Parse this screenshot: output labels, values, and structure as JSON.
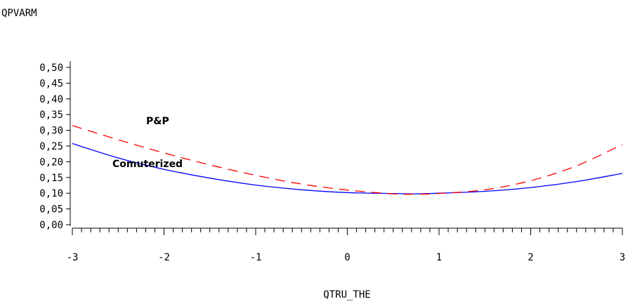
{
  "chart_data": {
    "type": "line",
    "title": "",
    "xlabel": "QTRU_THE",
    "ylabel": "QPVARM",
    "xlim": [
      -3,
      3
    ],
    "ylim": [
      0,
      0.52
    ],
    "x_ticks": [
      "-3",
      "-2",
      "-1",
      "0",
      "1",
      "2",
      "3"
    ],
    "y_ticks": [
      "0.00",
      "0.05",
      "0.10",
      "0.15",
      "0.20",
      "0.25",
      "0.30",
      "0.35",
      "0.40",
      "0.45",
      "0.50"
    ],
    "grid": false,
    "legend": "none",
    "x": [
      -3,
      -2.5,
      -2,
      -1.5,
      -1,
      -0.5,
      0,
      0.5,
      0.75,
      1,
      1.5,
      2,
      2.5,
      3
    ],
    "series": [
      {
        "name": "P&P",
        "color": "#ff0000",
        "style": "dashed",
        "values": [
          0.315,
          0.27,
          0.228,
          0.19,
          0.157,
          0.129,
          0.11,
          0.098,
          0.097,
          0.099,
          0.111,
          0.14,
          0.187,
          0.255
        ]
      },
      {
        "name": "Comuterized",
        "color": "#0000ff",
        "style": "solid",
        "values": [
          0.258,
          0.212,
          0.176,
          0.148,
          0.126,
          0.111,
          0.102,
          0.099,
          0.098,
          0.1,
          0.106,
          0.118,
          0.137,
          0.163
        ]
      }
    ],
    "annotations": [
      {
        "text": "P&P",
        "series": "P&P"
      },
      {
        "text": "Comuterized",
        "series": "Comuterized"
      }
    ]
  }
}
